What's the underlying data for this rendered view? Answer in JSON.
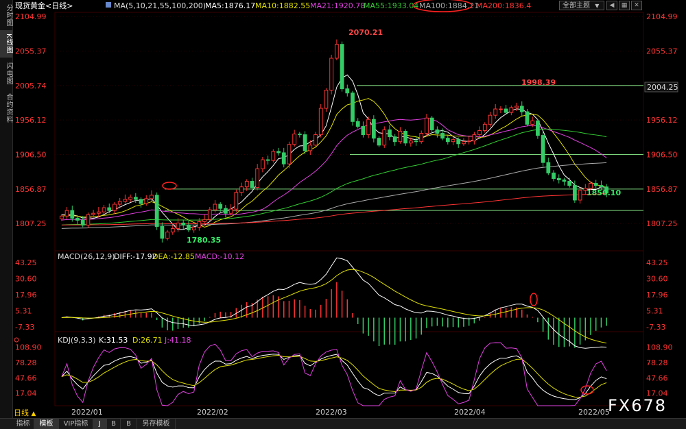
{
  "side_tabs": [
    {
      "label": "分时图",
      "active": false
    },
    {
      "label": "K线图",
      "active": true
    },
    {
      "label": "闪电图",
      "active": false
    },
    {
      "label": "合约资料",
      "active": false
    }
  ],
  "header": {
    "instrument": "现货黄金<日线>",
    "ma_params": "MA(5,10,21,55,100,200)",
    "ma5": "MA5:1876.17",
    "ma10": "MA10:1882.55",
    "ma21": "MA21:1920.78",
    "ma55": "MA55:1933.04",
    "ma100": "MA100:1884.21",
    "ma200": "MA200:1836.4",
    "theme_label": "全部主题",
    "theme_arrow": "▼"
  },
  "colors": {
    "ma5": "#ffffff",
    "ma10": "#e0e000",
    "ma21": "#e040e0",
    "ma55": "#33cc33",
    "ma100": "#aaaaaa",
    "ma200": "#ff3333",
    "up": "#ff3333",
    "down": "#33cc66"
  },
  "price_axis": {
    "labels": [
      "2104.99",
      "2055.37",
      "2005.74",
      "1956.12",
      "1906.50",
      "1856.87",
      "1807.25"
    ],
    "values": [
      2104.99,
      2055.37,
      2005.74,
      1956.12,
      1906.5,
      1856.87,
      1807.25
    ],
    "last_price": "2004.25",
    "min": 1768,
    "max": 2111
  },
  "annotations": {
    "high_label": "2070.21",
    "second_high": "1998.39",
    "low_label": "1780.35",
    "recent_low": "1850.10"
  },
  "horizontal_lines": [
    2005.74,
    1906.5,
    1856.87,
    1826
  ],
  "macd": {
    "title": "MACD(26,12,9)",
    "diff": "DIFF:-17.92",
    "dea": "DEA:-12.85",
    "macd": "MACD:-10.12",
    "axis": [
      "43.25",
      "30.60",
      "17.96",
      "5.31",
      "-7.33"
    ],
    "values": [
      43.25,
      30.6,
      17.96,
      5.31,
      -7.33
    ],
    "min": -11,
    "max": 46
  },
  "kdj": {
    "title": "KDJ(9,3,3)",
    "k": "K:31.53",
    "d": "D:26.71",
    "j": "J:41.18",
    "axis": [
      "108.90",
      "78.28",
      "47.66",
      "17.04"
    ],
    "values": [
      108.9,
      78.28,
      47.66,
      17.04
    ],
    "min": -8,
    "max": 118
  },
  "x_axis": {
    "months": [
      "2022/01",
      "2022/02",
      "2022/03",
      "2022/04",
      "2022/05"
    ]
  },
  "period": {
    "label": "日线",
    "arrow": "▲"
  },
  "bottom_tabs": [
    {
      "label": "指标",
      "active": false
    },
    {
      "label": "模板",
      "active": true
    },
    {
      "label": "VIP指标",
      "active": false
    },
    {
      "label": "J",
      "active": true
    },
    {
      "label": "B",
      "active": false
    },
    {
      "label": "B",
      "active": false
    },
    {
      "label": "另存模板",
      "active": false
    }
  ],
  "watermark": "FX678",
  "chart_data": {
    "type": "candlestick",
    "title": "现货黄金<日线>",
    "series": [
      {
        "name": "candles",
        "closes": [
          1818,
          1826,
          1815,
          1812,
          1805,
          1820,
          1822,
          1824,
          1830,
          1826,
          1835,
          1839,
          1842,
          1845,
          1842,
          1836,
          1843,
          1848,
          1803,
          1786,
          1795,
          1800,
          1808,
          1805,
          1798,
          1802,
          1810,
          1813,
          1827,
          1835,
          1829,
          1822,
          1828,
          1852,
          1860,
          1868,
          1859,
          1886,
          1899,
          1898,
          1911,
          1909,
          1893,
          1921,
          1936,
          1935,
          1912,
          1920,
          1935,
          1973,
          1999,
          2045,
          2065,
          2001,
          1995,
          1954,
          1947,
          1935,
          1957,
          1930,
          1920,
          1942,
          1932,
          1925,
          1940,
          1923,
          1926,
          1925,
          1937,
          1959,
          1942,
          1937,
          1930,
          1925,
          1928,
          1922,
          1925,
          1926,
          1935,
          1941,
          1950,
          1963,
          1972,
          1972,
          1967,
          1974,
          1976,
          1968,
          1950,
          1955,
          1934,
          1895,
          1880,
          1872,
          1870,
          1868,
          1862,
          1841,
          1855,
          1858,
          1865,
          1862,
          1860,
          1851
        ]
      },
      {
        "name": "MA5",
        "color": "#ffffff"
      },
      {
        "name": "MA10",
        "color": "#e0e000"
      },
      {
        "name": "MA21",
        "color": "#e040e0"
      },
      {
        "name": "MA55",
        "color": "#33cc33"
      },
      {
        "name": "MA100",
        "color": "#aaaaaa"
      },
      {
        "name": "MA200",
        "color": "#ff3333"
      }
    ],
    "ylim": [
      1768,
      2111
    ],
    "x_ticks": [
      "2022/01",
      "2022/02",
      "2022/03",
      "2022/04",
      "2022/05"
    ]
  }
}
